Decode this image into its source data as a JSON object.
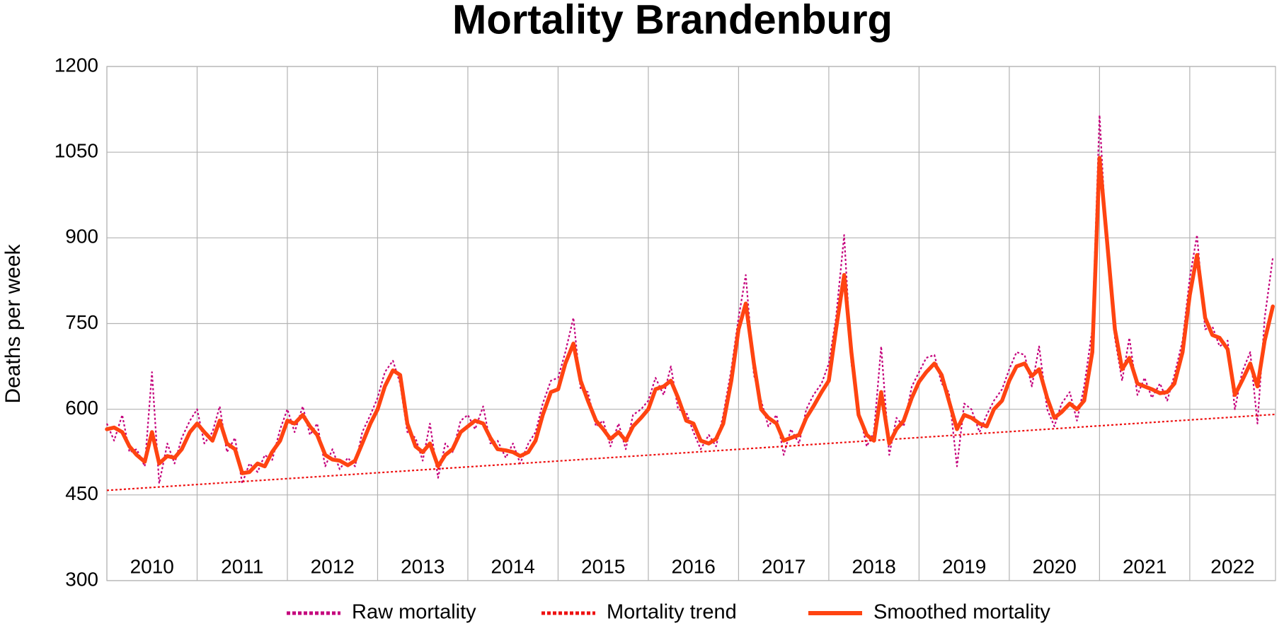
{
  "chart_data": {
    "type": "line",
    "title": "Mortality Brandenburg",
    "y_label": "Deaths per week",
    "xlim": [
      2010,
      2022.95
    ],
    "xticks": [
      2010,
      2011,
      2012,
      2013,
      2014,
      2015,
      2016,
      2017,
      2018,
      2019,
      2020,
      2021,
      2022
    ],
    "ylim": [
      300,
      1200
    ],
    "yticks": [
      300,
      450,
      600,
      750,
      900,
      1050,
      1200
    ],
    "grid": true,
    "legend": "bottom",
    "x": [
      2010,
      2010.08,
      2010.17,
      2010.25,
      2010.33,
      2010.42,
      2010.5,
      2010.58,
      2010.67,
      2010.75,
      2010.83,
      2010.92,
      2011,
      2011.08,
      2011.17,
      2011.25,
      2011.33,
      2011.42,
      2011.5,
      2011.58,
      2011.67,
      2011.75,
      2011.83,
      2011.92,
      2012,
      2012.08,
      2012.17,
      2012.25,
      2012.33,
      2012.42,
      2012.5,
      2012.58,
      2012.67,
      2012.75,
      2012.83,
      2012.92,
      2013,
      2013.08,
      2013.17,
      2013.25,
      2013.33,
      2013.42,
      2013.5,
      2013.58,
      2013.67,
      2013.75,
      2013.83,
      2013.92,
      2014,
      2014.08,
      2014.17,
      2014.25,
      2014.33,
      2014.42,
      2014.5,
      2014.58,
      2014.67,
      2014.75,
      2014.83,
      2014.92,
      2015,
      2015.08,
      2015.17,
      2015.25,
      2015.33,
      2015.42,
      2015.5,
      2015.58,
      2015.67,
      2015.75,
      2015.83,
      2015.92,
      2016,
      2016.08,
      2016.17,
      2016.25,
      2016.33,
      2016.42,
      2016.5,
      2016.58,
      2016.67,
      2016.75,
      2016.83,
      2016.92,
      2017,
      2017.08,
      2017.17,
      2017.25,
      2017.33,
      2017.42,
      2017.5,
      2017.58,
      2017.67,
      2017.75,
      2017.83,
      2017.92,
      2018,
      2018.08,
      2018.17,
      2018.25,
      2018.33,
      2018.42,
      2018.5,
      2018.58,
      2018.67,
      2018.75,
      2018.83,
      2018.92,
      2019,
      2019.08,
      2019.17,
      2019.25,
      2019.33,
      2019.42,
      2019.5,
      2019.58,
      2019.67,
      2019.75,
      2019.83,
      2019.92,
      2020,
      2020.08,
      2020.17,
      2020.25,
      2020.33,
      2020.42,
      2020.5,
      2020.58,
      2020.67,
      2020.75,
      2020.83,
      2020.92,
      2021,
      2021.08,
      2021.17,
      2021.25,
      2021.33,
      2021.42,
      2021.5,
      2021.58,
      2021.67,
      2021.75,
      2021.83,
      2021.92,
      2022,
      2022.08,
      2022.17,
      2022.25,
      2022.33,
      2022.42,
      2022.5,
      2022.58,
      2022.67,
      2022.75,
      2022.83,
      2022.92
    ],
    "series": [
      {
        "name": "Raw mortality",
        "color": "#c4007c",
        "style": "dotted",
        "values": [
          575,
          545,
          590,
          525,
          530,
          500,
          665,
          470,
          540,
          505,
          550,
          580,
          600,
          540,
          560,
          605,
          525,
          550,
          470,
          505,
          490,
          520,
          510,
          565,
          600,
          560,
          605,
          555,
          575,
          500,
          530,
          495,
          515,
          500,
          560,
          590,
          620,
          665,
          685,
          645,
          560,
          550,
          510,
          575,
          480,
          540,
          525,
          580,
          590,
          565,
          605,
          540,
          545,
          515,
          540,
          505,
          540,
          560,
          610,
          650,
          655,
          700,
          760,
          635,
          630,
          570,
          580,
          535,
          575,
          530,
          590,
          600,
          615,
          655,
          625,
          675,
          600,
          595,
          560,
          530,
          555,
          535,
          590,
          670,
          760,
          835,
          660,
          615,
          570,
          590,
          520,
          565,
          540,
          600,
          625,
          645,
          680,
          760,
          905,
          680,
          600,
          535,
          560,
          710,
          520,
          585,
          570,
          640,
          665,
          690,
          695,
          645,
          630,
          500,
          610,
          600,
          560,
          590,
          615,
          635,
          670,
          700,
          695,
          640,
          710,
          600,
          570,
          610,
          630,
          580,
          640,
          740,
          1115,
          880,
          725,
          650,
          725,
          625,
          655,
          620,
          645,
          615,
          660,
          720,
          830,
          905,
          740,
          745,
          710,
          720,
          600,
          665,
          700,
          575,
          760,
          865
        ]
      },
      {
        "name": "Mortality trend",
        "color": "#ee1111",
        "style": "dotted",
        "x": [
          2010,
          2022.95
        ],
        "values": [
          458,
          591
        ]
      },
      {
        "name": "Smoothed mortality",
        "color": "#ff4411",
        "style": "solid",
        "values": [
          565,
          568,
          560,
          535,
          520,
          508,
          560,
          505,
          518,
          515,
          530,
          560,
          575,
          560,
          545,
          580,
          540,
          530,
          488,
          490,
          505,
          500,
          525,
          545,
          580,
          575,
          590,
          570,
          555,
          520,
          512,
          510,
          502,
          510,
          540,
          575,
          600,
          640,
          668,
          660,
          575,
          535,
          525,
          540,
          500,
          520,
          530,
          560,
          570,
          580,
          575,
          550,
          530,
          528,
          525,
          518,
          525,
          545,
          590,
          630,
          635,
          680,
          715,
          650,
          615,
          580,
          565,
          548,
          560,
          545,
          570,
          585,
          600,
          635,
          640,
          650,
          620,
          580,
          575,
          545,
          540,
          548,
          575,
          650,
          740,
          785,
          680,
          600,
          585,
          575,
          545,
          550,
          555,
          585,
          605,
          630,
          650,
          740,
          835,
          700,
          590,
          555,
          545,
          630,
          540,
          565,
          580,
          620,
          648,
          665,
          680,
          660,
          615,
          565,
          590,
          585,
          575,
          570,
          600,
          615,
          650,
          675,
          680,
          658,
          670,
          620,
          585,
          595,
          610,
          600,
          615,
          700,
          1040,
          900,
          740,
          670,
          690,
          645,
          640,
          635,
          628,
          630,
          645,
          700,
          800,
          870,
          760,
          730,
          725,
          705,
          625,
          650,
          680,
          640,
          720,
          780
        ]
      }
    ]
  }
}
